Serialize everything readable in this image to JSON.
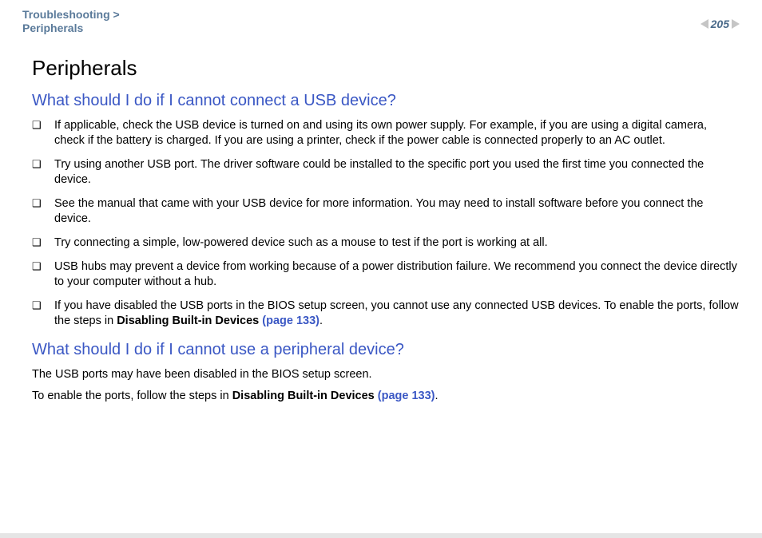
{
  "header": {
    "breadcrumb_line1": "Troubleshooting >",
    "breadcrumb_line2": "Peripherals",
    "page_number": "205"
  },
  "page_title": "Peripherals",
  "section1": {
    "heading": "What should I do if I cannot connect a USB device?",
    "bullets": [
      "If applicable, check the USB device is turned on and using its own power supply. For example, if you are using a digital camera, check if the battery is charged. If you are using a printer, check if the power cable is connected properly to an AC outlet.",
      "Try using another USB port. The driver software could be installed to the specific port you used the first time you connected the device.",
      "See the manual that came with your USB device for more information. You may need to install software before you connect the device.",
      "Try connecting a simple, low-powered device such as a mouse to test if the port is working at all.",
      "USB hubs may prevent a device from working because of a power distribution failure. We recommend you connect the device directly to your computer without a hub."
    ],
    "bullet6_pre": "If you have disabled the USB ports in the BIOS setup screen, you cannot use any connected USB devices. To enable the ports, follow the steps in ",
    "bullet6_bold": "Disabling Built-in Devices ",
    "bullet6_link": "(page 133)",
    "bullet6_post": "."
  },
  "section2": {
    "heading": "What should I do if I cannot use a peripheral device?",
    "para1": "The USB ports may have been disabled in the BIOS setup screen.",
    "para2_pre": "To enable the ports, follow the steps in ",
    "para2_bold": "Disabling Built-in Devices ",
    "para2_link": "(page 133)",
    "para2_post": "."
  },
  "colors": {
    "breadcrumb": "#5a7a9a",
    "heading_link": "#3a57c4",
    "body_text": "#000000",
    "arrow_gray": "#c5c5c5",
    "page_bg": "#ffffff"
  }
}
